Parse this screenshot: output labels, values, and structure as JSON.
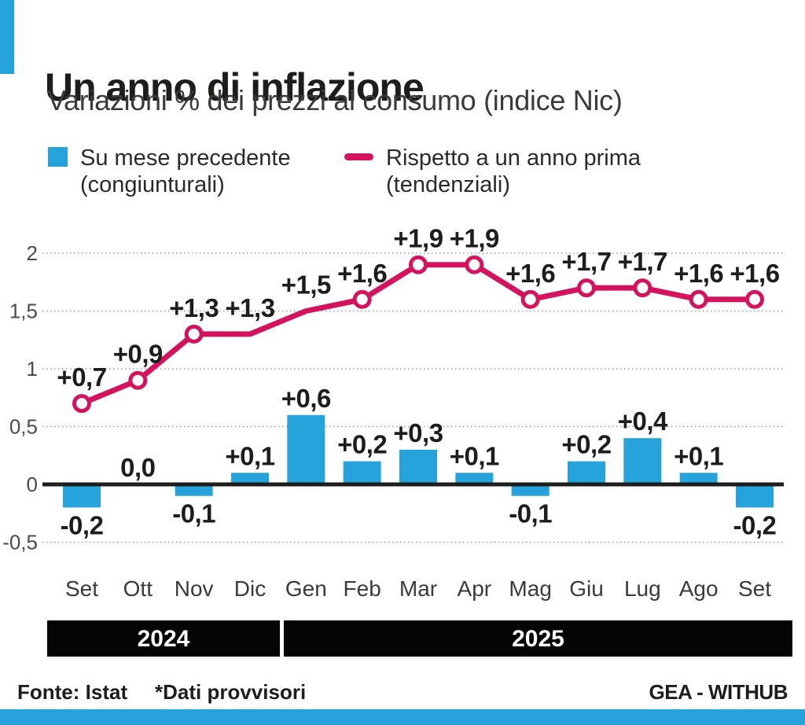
{
  "header": {
    "title": "Un anno di inflazione",
    "subtitle": "Variazioni % dei prezzi al consumo (indice Nic)"
  },
  "legend": {
    "bars": {
      "line1": "Su mese precedente",
      "line2": "(congiunturali)"
    },
    "line": {
      "line1": "Rispetto a un anno prima",
      "line2": "(tendenziali)"
    }
  },
  "footer": {
    "source": "Fonte: Istat",
    "note": "*Dati provvisori",
    "credit": "GEA - WITHUB"
  },
  "colors": {
    "bar_blue": "#27a3dc",
    "line_magenta": "#d4135e",
    "text_dark": "#1d1d1b",
    "text_gray": "#3a3a39",
    "tick_gray": "#4b4b4a",
    "grid_gray": "#9b9b9b",
    "band_black": "#050505",
    "band_text": "#ffffff"
  },
  "chart_data": {
    "type": "bar+line",
    "title": "Un anno di inflazione",
    "subtitle": "Variazioni % dei prezzi al consumo (indice Nic)",
    "categories": [
      "Set",
      "Ott",
      "Nov",
      "Dic",
      "Gen",
      "Feb",
      "Mar",
      "Apr",
      "Mag",
      "Giu",
      "Lug",
      "Ago",
      "Set"
    ],
    "series": [
      {
        "name": "Su mese precedente (congiunturali)",
        "type": "bar",
        "values": [
          -0.2,
          0.0,
          -0.1,
          0.1,
          0.6,
          0.2,
          0.3,
          0.1,
          -0.1,
          0.2,
          0.4,
          0.1,
          -0.2
        ],
        "labels": [
          "-0,2",
          "0,0",
          "-0,1",
          "+0,1",
          "+0,6",
          "+0,2",
          "+0,3",
          "+0,1",
          "-0,1",
          "+0,2",
          "+0,4",
          "+0,1",
          "-0,2"
        ]
      },
      {
        "name": "Rispetto a un anno prima (tendenziali)",
        "type": "line",
        "values": [
          0.7,
          0.9,
          1.3,
          1.3,
          1.5,
          1.6,
          1.9,
          1.9,
          1.6,
          1.7,
          1.7,
          1.6,
          1.6
        ],
        "labels": [
          "+0,7",
          "+0,9",
          "+1,3",
          "+1,3",
          "+1,5",
          "+1,6",
          "+1,9",
          "+1,9",
          "+1,6",
          "+1,7",
          "+1,7",
          "+1,6",
          "+1,6"
        ],
        "markers": [
          true,
          true,
          true,
          false,
          false,
          true,
          true,
          true,
          true,
          true,
          true,
          true,
          true
        ]
      }
    ],
    "y_axis": {
      "ticks": [
        2,
        1.5,
        1,
        0.5,
        0,
        -0.5
      ],
      "tick_labels": [
        "2",
        "1,5",
        "1",
        "0,5",
        "0",
        "-0,5"
      ],
      "range": [
        -0.5,
        2
      ]
    },
    "x_groups": [
      {
        "label": "2024",
        "from": 0,
        "to": 3
      },
      {
        "label": "2025",
        "from": 4,
        "to": 12
      }
    ],
    "grid": "dotted horizontal"
  }
}
